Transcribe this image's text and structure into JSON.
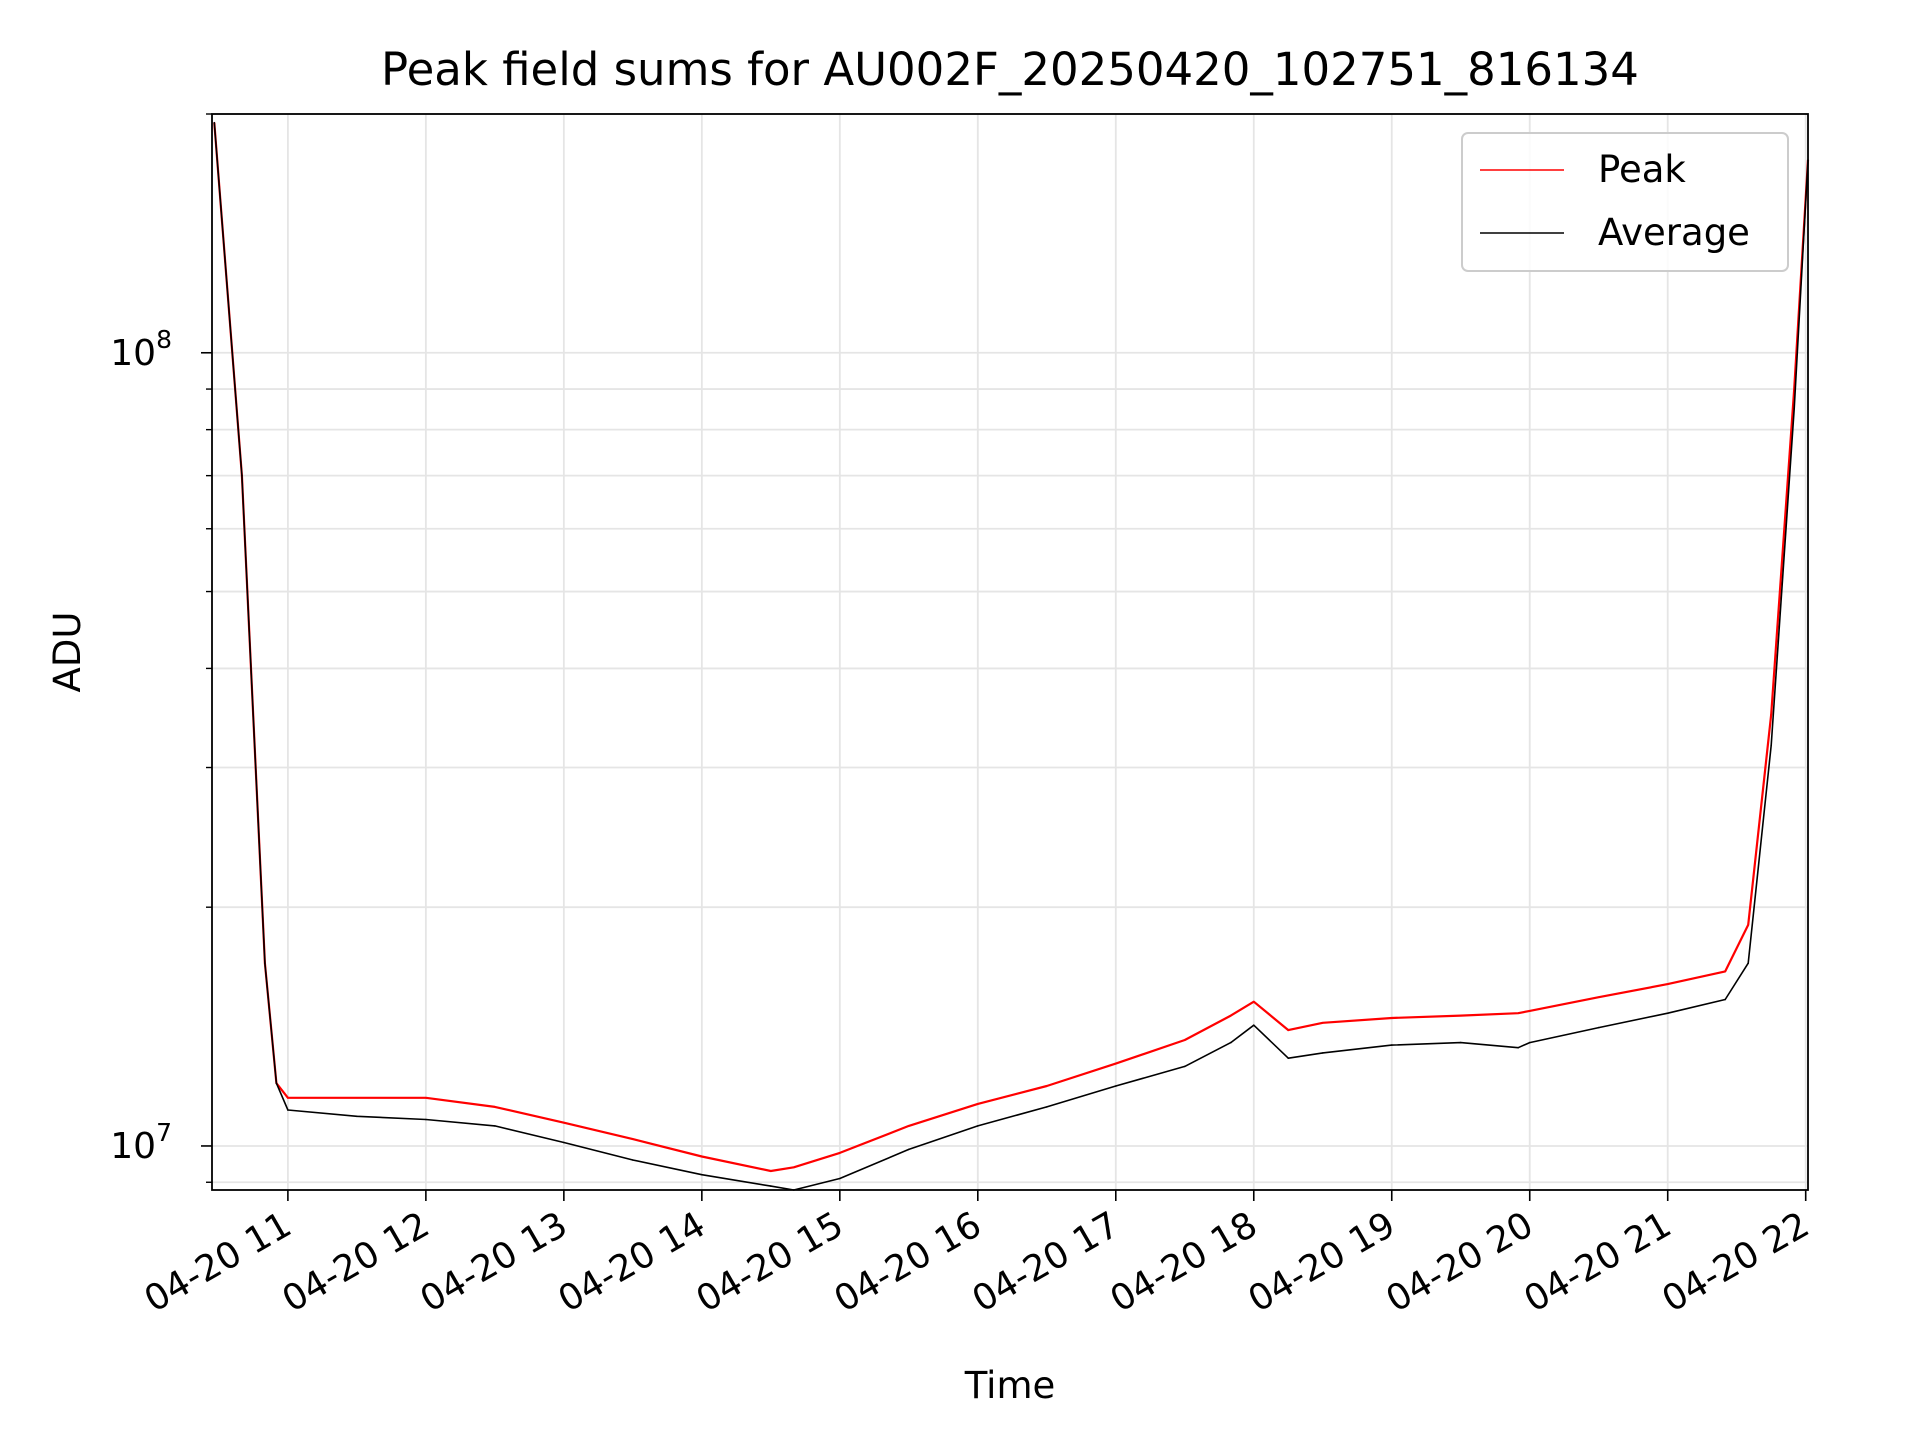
{
  "chart_data": {
    "type": "line",
    "title": "Peak field sums for AU002F_20250420_102751_816134",
    "xlabel": "Time",
    "ylabel": "ADU",
    "yscale": "log",
    "grid": true,
    "legend_placement": "top-right",
    "xlim": [
      "2025-04-20 10:27",
      "2025-04-20 22:01"
    ],
    "ylim": [
      8800000,
      200000000
    ],
    "x_ticks": [
      "04-20 11",
      "04-20 12",
      "04-20 13",
      "04-20 14",
      "04-20 15",
      "04-20 16",
      "04-20 17",
      "04-20 18",
      "04-20 19",
      "04-20 20",
      "04-20 21",
      "04-20 22"
    ],
    "y_ticks": [
      {
        "value": 10000000,
        "base": "10",
        "exp": "7"
      },
      {
        "value": 100000000,
        "base": "10",
        "exp": "8"
      }
    ],
    "x": [
      "2025-04-20 10:28",
      "2025-04-20 10:40",
      "2025-04-20 10:50",
      "2025-04-20 10:55",
      "2025-04-20 11:00",
      "2025-04-20 11:30",
      "2025-04-20 12:00",
      "2025-04-20 12:30",
      "2025-04-20 13:00",
      "2025-04-20 13:30",
      "2025-04-20 14:00",
      "2025-04-20 14:30",
      "2025-04-20 14:40",
      "2025-04-20 15:00",
      "2025-04-20 15:30",
      "2025-04-20 16:00",
      "2025-04-20 16:30",
      "2025-04-20 17:00",
      "2025-04-20 17:30",
      "2025-04-20 17:50",
      "2025-04-20 18:00",
      "2025-04-20 18:15",
      "2025-04-20 18:30",
      "2025-04-20 19:00",
      "2025-04-20 19:30",
      "2025-04-20 19:55",
      "2025-04-20 20:00",
      "2025-04-20 20:30",
      "2025-04-20 21:00",
      "2025-04-20 21:25",
      "2025-04-20 21:35",
      "2025-04-20 21:45",
      "2025-04-20 21:55",
      "2025-04-20 22:01"
    ],
    "series": [
      {
        "name": "Peak",
        "color": "#ff0000",
        "values": [
          195000000,
          70000000,
          17000000,
          12000000,
          11500000,
          11500000,
          11500000,
          11200000,
          10700000,
          10200000,
          9700000,
          9300000,
          9400000,
          9800000,
          10600000,
          11300000,
          11900000,
          12700000,
          13600000,
          14600000,
          15200000,
          14000000,
          14300000,
          14500000,
          14600000,
          14700000,
          14800000,
          15400000,
          16000000,
          16600000,
          19000000,
          35000000,
          90000000,
          175000000
        ]
      },
      {
        "name": "Average",
        "color": "#000000",
        "values": [
          195000000,
          70000000,
          17000000,
          12000000,
          11100000,
          10900000,
          10800000,
          10600000,
          10100000,
          9600000,
          9200000,
          8900000,
          8800000,
          9100000,
          9900000,
          10600000,
          11200000,
          11900000,
          12600000,
          13500000,
          14200000,
          12900000,
          13100000,
          13400000,
          13500000,
          13300000,
          13500000,
          14100000,
          14700000,
          15300000,
          17000000,
          32000000,
          85000000,
          175000000
        ]
      }
    ]
  }
}
